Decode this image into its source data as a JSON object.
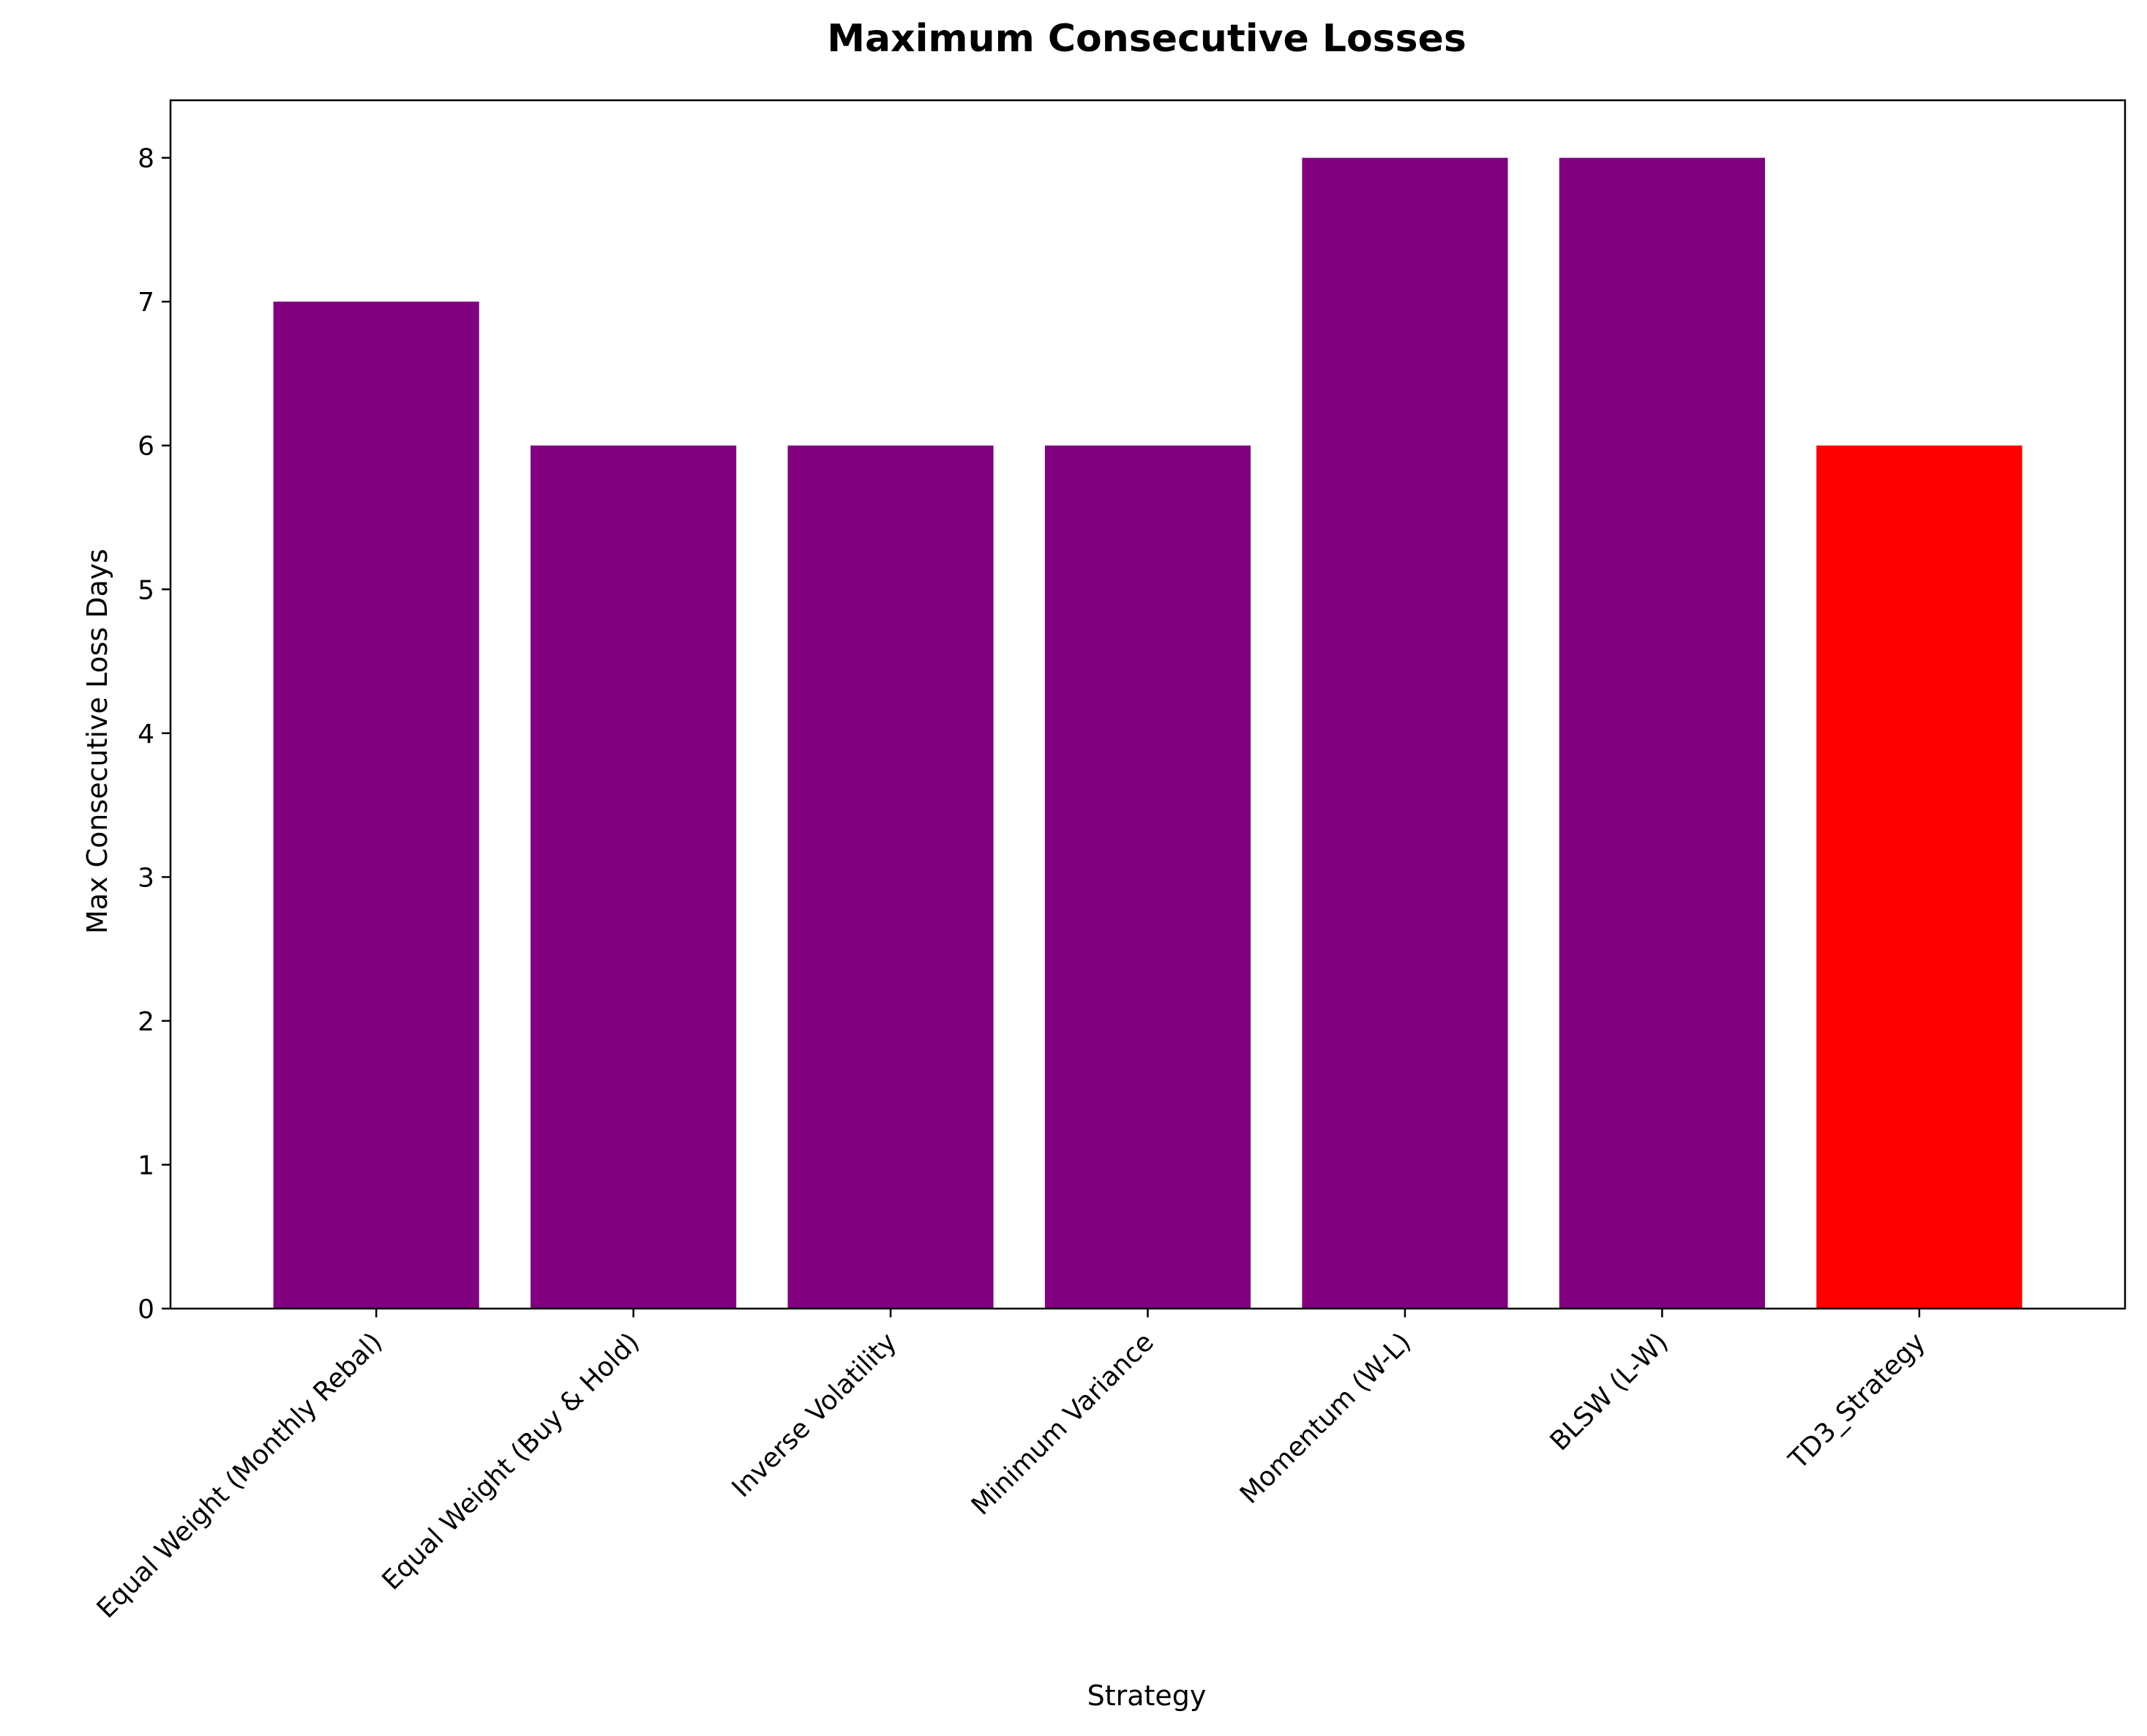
{
  "chart_data": {
    "type": "bar",
    "title": "Maximum Consecutive Losses",
    "xlabel": "Strategy",
    "ylabel": "Max Consecutive Loss Days",
    "categories": [
      "Equal Weight (Monthly Rebal)",
      "Equal Weight (Buy & Hold)",
      "Inverse Volatility",
      "Minimum Variance",
      "Momentum (W-L)",
      "BLSW (L-W)",
      "TD3_Strategy"
    ],
    "values": [
      7,
      6,
      6,
      6,
      8,
      8,
      6
    ],
    "bar_colors": [
      "#800080",
      "#800080",
      "#800080",
      "#800080",
      "#800080",
      "#800080",
      "#ff0000"
    ],
    "ylim": [
      0,
      8.4
    ],
    "yticks": [
      0,
      1,
      2,
      3,
      4,
      5,
      6,
      7,
      8
    ],
    "grid": false,
    "legend": "none"
  }
}
